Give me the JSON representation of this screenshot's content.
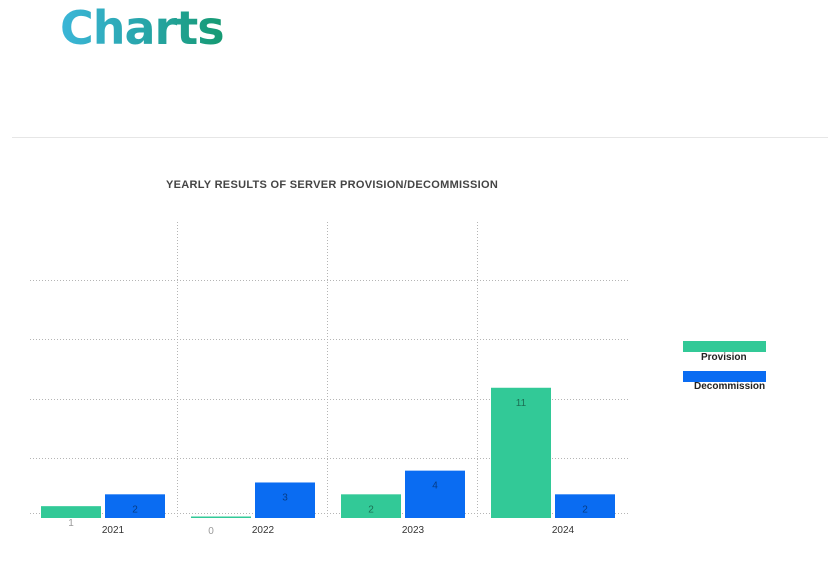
{
  "page": {
    "title": "Charts"
  },
  "chart_data": {
    "type": "bar",
    "title": "YEARLY RESULTS OF SERVER PROVISION/DECOMMISSION",
    "categories": [
      "2021",
      "2022",
      "2023",
      "2024"
    ],
    "series": [
      {
        "name": "Provision",
        "values": [
          1,
          0,
          2,
          11
        ],
        "color": "#32c997"
      },
      {
        "name": "Decommission",
        "values": [
          2,
          3,
          4,
          2
        ],
        "color": "#0a6cf2"
      }
    ],
    "ylim": [
      0,
      25
    ],
    "grid": true,
    "legend": "right"
  }
}
